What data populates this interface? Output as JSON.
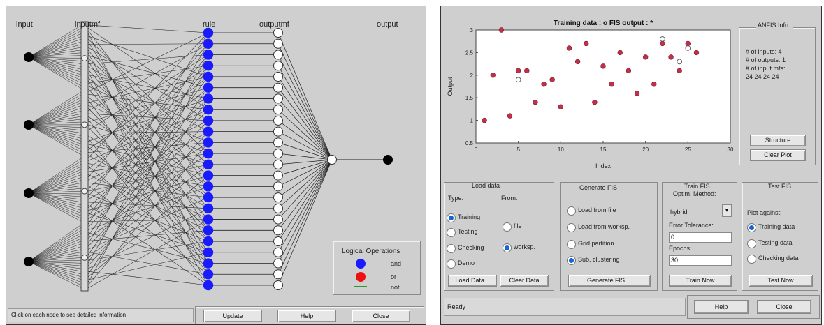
{
  "left": {
    "labels": {
      "input": "input",
      "inputmf": "inputmf",
      "rule": "rule",
      "outputmf": "outputmf",
      "output": "output"
    },
    "legend": {
      "title": "Logical Operations",
      "and": "and",
      "or": "or",
      "not": "not"
    },
    "status": "Click on each node to see detailed information",
    "buttons": {
      "update": "Update",
      "help": "Help",
      "close": "Close"
    },
    "colors": {
      "rule_node": "#1a1aff",
      "or_node": "#ee1111",
      "wire": "#222222"
    }
  },
  "right": {
    "chart_data": {
      "type": "scatter",
      "title": "Training data :  o    FIS output : *",
      "xlabel": "Index",
      "ylabel": "Output",
      "xlim": [
        0,
        30
      ],
      "ylim": [
        0.5,
        3
      ],
      "xticks": [
        "0",
        "5",
        "10",
        "15",
        "20",
        "25",
        "30"
      ],
      "yticks": [
        "0.5",
        "1",
        "1.5",
        "2",
        "2.5",
        "3"
      ],
      "series": [
        {
          "marker": "filled",
          "color": "#c0304a",
          "points": [
            [
              1,
              1
            ],
            [
              2,
              2
            ],
            [
              3,
              3
            ],
            [
              4,
              1.1
            ],
            [
              5,
              2.1
            ],
            [
              6,
              2.1
            ],
            [
              7,
              1.4
            ],
            [
              8,
              1.8
            ],
            [
              9,
              1.9
            ],
            [
              10,
              1.3
            ],
            [
              11,
              2.6
            ],
            [
              12,
              2.3
            ],
            [
              13,
              2.7
            ],
            [
              14,
              1.4
            ],
            [
              15,
              2.2
            ],
            [
              16,
              1.8
            ],
            [
              17,
              2.5
            ],
            [
              18,
              2.1
            ],
            [
              19,
              1.6
            ],
            [
              20,
              2.4
            ],
            [
              21,
              1.8
            ],
            [
              22,
              2.7
            ],
            [
              23,
              2.4
            ],
            [
              24,
              2.1
            ],
            [
              25,
              2.7
            ],
            [
              26,
              2.5
            ]
          ]
        },
        {
          "marker": "hollow",
          "color": "#555555",
          "points": [
            [
              5,
              1.9
            ],
            [
              22,
              2.8
            ],
            [
              24,
              2.3
            ],
            [
              25,
              2.6
            ]
          ]
        }
      ]
    },
    "anfis_info": {
      "title": "ANFIS Info.",
      "lines": [
        "# of inputs: 4",
        "# of outputs: 1",
        "# of input mfs:",
        "24  24  24  24"
      ]
    },
    "buttons": {
      "structure": "Structure",
      "clear_plot": "Clear Plot",
      "help": "Help",
      "close": "Close",
      "load_data": "Load Data...",
      "clear_data": "Clear Data",
      "generate_fis": "Generate FIS ...",
      "train_now": "Train Now",
      "test_now": "Test Now"
    },
    "load_data": {
      "title": "Load data",
      "type_label": "Type:",
      "from_label": "From:",
      "types": [
        "Training",
        "Testing",
        "Checking",
        "Demo"
      ],
      "selected_type": "Training",
      "sources": [
        "file",
        "worksp."
      ],
      "selected_source": "worksp."
    },
    "generate_fis": {
      "title": "Generate FIS",
      "options": [
        "Load from file",
        "Load from worksp.",
        "Grid partition",
        "Sub. clustering"
      ],
      "selected": "Sub. clustering"
    },
    "train_fis": {
      "title": "Train FIS",
      "method_label": "Optim. Method:",
      "method_value": "hybrid",
      "tolerance_label": "Error Tolerance:",
      "tolerance_value": "0",
      "epochs_label": "Epochs:",
      "epochs_value": "30"
    },
    "test_fis": {
      "title": "Test FIS",
      "plot_label": "Plot against:",
      "options": [
        "Training data",
        "Testing data",
        "Checking data"
      ],
      "selected": "Training data"
    },
    "status": "Ready"
  }
}
